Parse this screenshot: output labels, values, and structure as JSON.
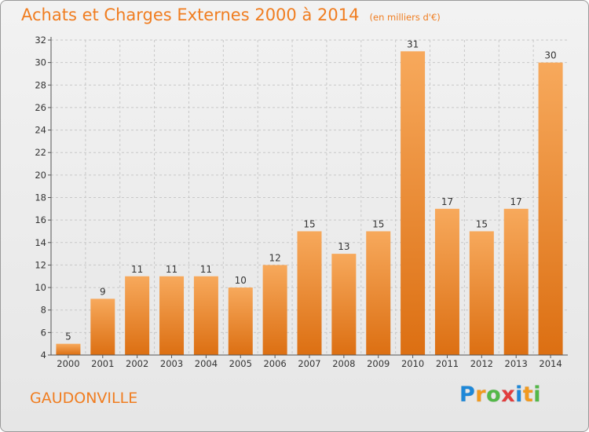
{
  "title": "Achats et Charges Externes 2000 à 2014",
  "subtitle": "(en milliers d'€)",
  "town": "GAUDONVILLE",
  "brand": {
    "letters": [
      "P",
      "r",
      "o",
      "x",
      "i",
      "t",
      "i"
    ],
    "colors": [
      "#1e88d8",
      "#f29a1f",
      "#53b848",
      "#e23d3d",
      "#1e88d8",
      "#f29a1f",
      "#53b848"
    ]
  },
  "colors": {
    "accent": "#f07d20",
    "bar_light": "#f7a95c",
    "bar_dark": "#dc6f12",
    "grid": "#c8c8c8",
    "axis": "#555555",
    "text": "#333333"
  },
  "chart_data": {
    "type": "bar",
    "categories": [
      "2000",
      "2001",
      "2002",
      "2003",
      "2004",
      "2005",
      "2006",
      "2007",
      "2008",
      "2009",
      "2010",
      "2011",
      "2012",
      "2013",
      "2014"
    ],
    "values": [
      5,
      9,
      11,
      11,
      11,
      10,
      12,
      15,
      13,
      15,
      31,
      17,
      15,
      17,
      30
    ],
    "ylim": [
      4,
      32
    ],
    "yticks": [
      4,
      6,
      8,
      10,
      12,
      14,
      16,
      18,
      20,
      22,
      24,
      26,
      28,
      30,
      32
    ],
    "grid": true,
    "xlabel": "",
    "ylabel": ""
  }
}
